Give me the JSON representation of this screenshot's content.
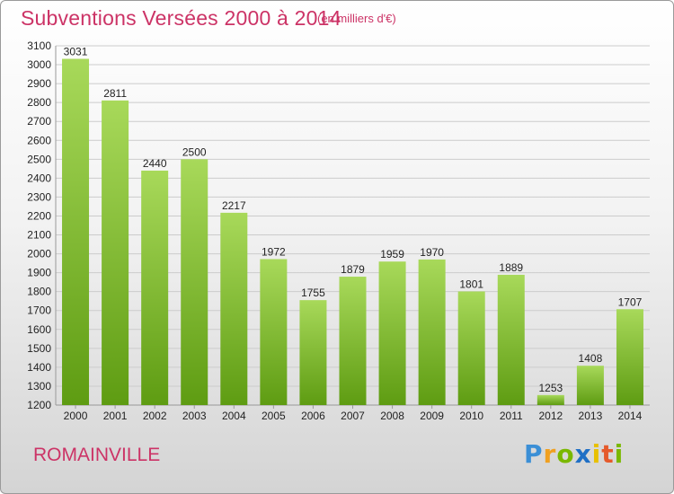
{
  "header": {
    "title": "Subventions Versées 2000 à 2014",
    "unit_note": "(en milliers d'€)"
  },
  "footer": {
    "city": "ROMAINVILLE",
    "logo_text": "Proxiti"
  },
  "colors": {
    "title": "#cc3366",
    "bar_top": "#a8d95a",
    "bar_bottom": "#5e9c12",
    "grid": "#cccccc"
  },
  "chart_data": {
    "type": "bar",
    "title": "Subventions Versées 2000 à 2014",
    "xlabel": "",
    "ylabel": "",
    "categories": [
      "2000",
      "2001",
      "2002",
      "2003",
      "2004",
      "2005",
      "2006",
      "2007",
      "2008",
      "2009",
      "2010",
      "2011",
      "2012",
      "2013",
      "2014"
    ],
    "values": [
      3031,
      2811,
      2440,
      2500,
      2217,
      1972,
      1755,
      1879,
      1959,
      1970,
      1801,
      1889,
      1253,
      1408,
      1707
    ],
    "ylim": [
      1200,
      3100
    ],
    "ytick_step": 100,
    "grid": true,
    "legend": "none"
  }
}
